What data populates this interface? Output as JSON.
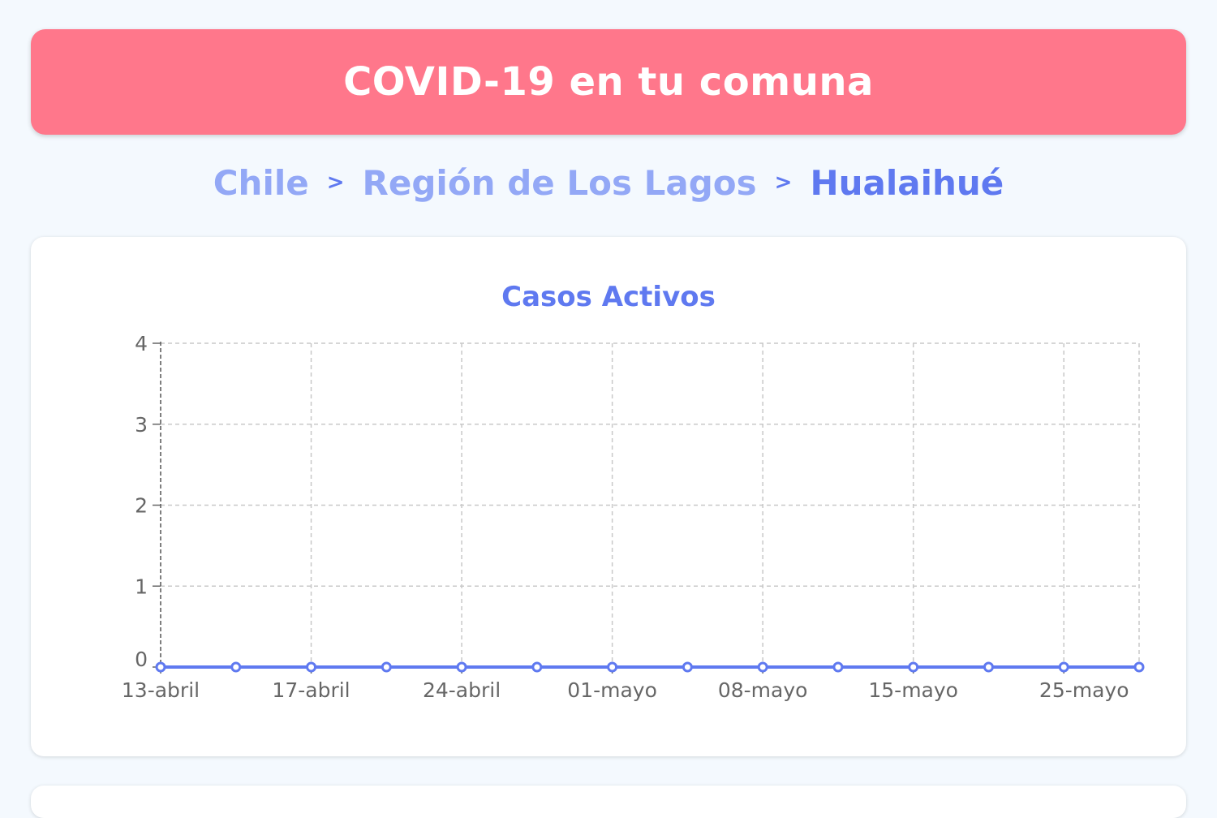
{
  "header": {
    "title": "COVID-19 en tu comuna"
  },
  "breadcrumb": {
    "items": [
      {
        "label": "Chile"
      },
      {
        "label": "Región de Los Lagos"
      },
      {
        "label": "Hualaihué"
      }
    ],
    "separator": ">"
  },
  "colors": {
    "header_bg": "#ff778b",
    "accent": "#5f79f0",
    "link": "#93a8f6"
  },
  "chart_data": {
    "type": "line",
    "title": "Casos Activos",
    "xlabel": "",
    "ylabel": "",
    "ylim": [
      0,
      4
    ],
    "y_ticks": [
      0,
      1,
      2,
      3,
      4
    ],
    "grid": true,
    "x_tick_labels": [
      "13-abril",
      "17-abril",
      "24-abril",
      "01-mayo",
      "08-mayo",
      "15-mayo",
      "25-mayo"
    ],
    "x": [
      "13-abril",
      "",
      "17-abril",
      "",
      "24-abril",
      "",
      "01-mayo",
      "",
      "08-mayo",
      "",
      "15-mayo",
      "",
      "25-mayo",
      ""
    ],
    "series": [
      {
        "color": "#5f79f0",
        "values": [
          0,
          0,
          0,
          0,
          0,
          0,
          0,
          0,
          0,
          0,
          0,
          0,
          0,
          0
        ]
      }
    ]
  }
}
